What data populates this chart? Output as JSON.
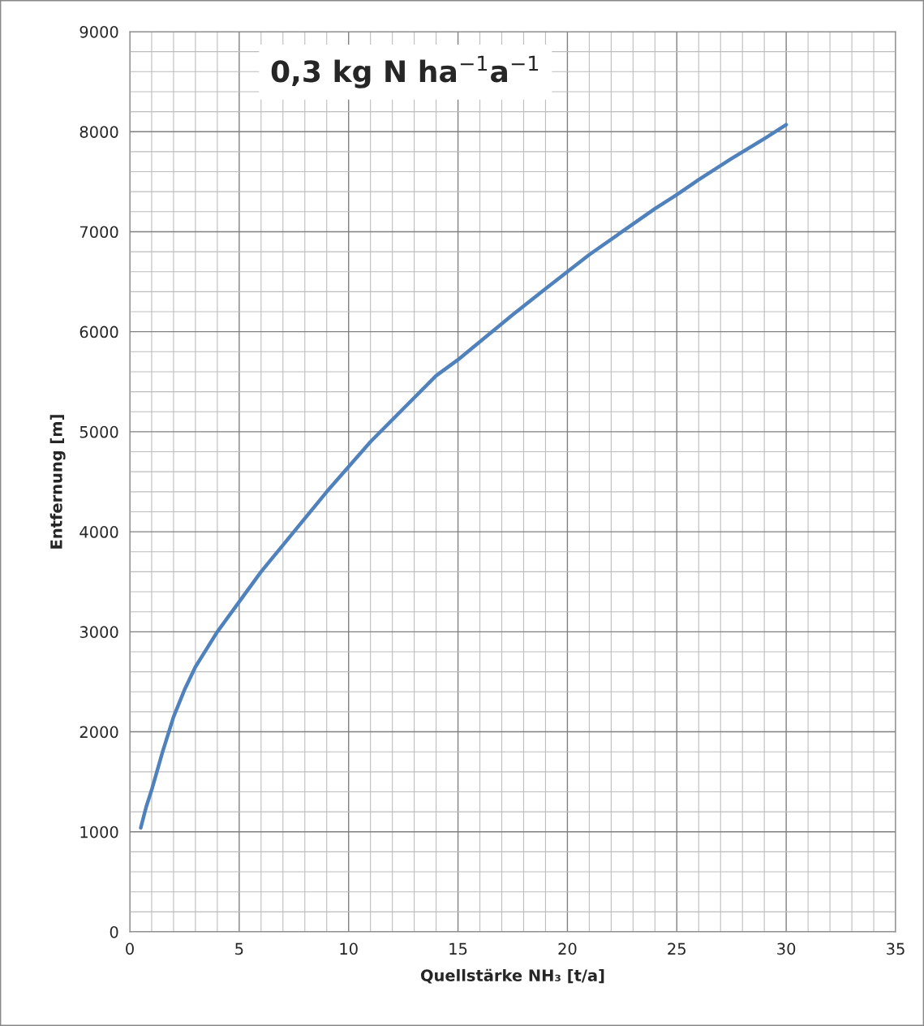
{
  "chart_data": {
    "type": "line",
    "title": "0,3 kg N ha$^{−1}$a$^{−1}$",
    "xlabel": "Quellstärke NH₃ [t/a]",
    "ylabel": "Entfernung [m]",
    "x": [
      0.5,
      0.75,
      1,
      1.5,
      2,
      2.5,
      3,
      4,
      5,
      6,
      7.5,
      9,
      10,
      11,
      12.5,
      14,
      15,
      16,
      17.5,
      19,
      20,
      21,
      22.5,
      24,
      25,
      26,
      27.5,
      29,
      30
    ],
    "series": [
      {
        "color": "#4f81bd",
        "values": [
          1040,
          1250,
          1420,
          1800,
          2150,
          2420,
          2650,
          3000,
          3300,
          3600,
          4000,
          4400,
          4650,
          4900,
          5230,
          5560,
          5720,
          5900,
          6170,
          6430,
          6600,
          6770,
          7000,
          7230,
          7370,
          7520,
          7730,
          7930,
          8070
        ]
      }
    ],
    "xlim": [
      0,
      35
    ],
    "xticks": [
      0,
      5,
      10,
      15,
      20,
      25,
      30,
      35
    ],
    "ylim": [
      0,
      9000
    ],
    "yticks": [
      0,
      1000,
      2000,
      3000,
      4000,
      5000,
      6000,
      7000,
      8000,
      9000
    ],
    "grid": true,
    "legend": false,
    "marker": "none",
    "line_style": "solid"
  }
}
